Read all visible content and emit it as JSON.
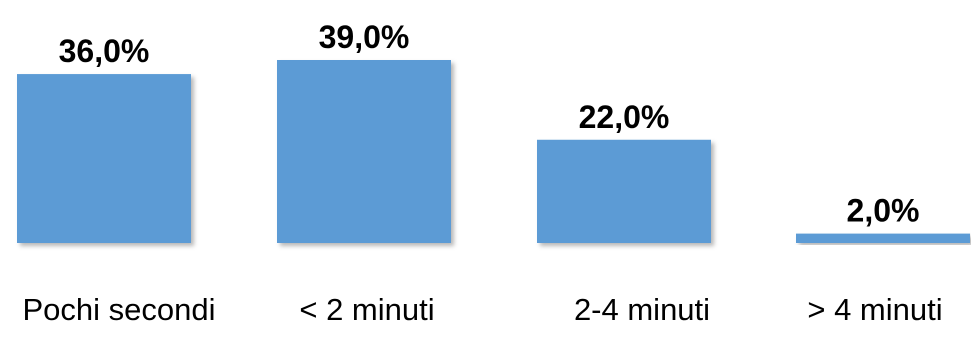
{
  "chart_data": {
    "type": "bar",
    "categories": [
      "Pochi secondi",
      "< 2 minuti",
      "2-4 minuti",
      "> 4 minuti"
    ],
    "values": [
      36.0,
      39.0,
      22.0,
      2.0
    ],
    "data_labels": [
      "36,0%",
      "39,0%",
      "22,0%",
      "2,0%"
    ],
    "title": "",
    "xlabel": "",
    "ylabel": "",
    "ylim": [
      0,
      39
    ],
    "grid": false,
    "legend": "none",
    "colors": {
      "bar": "#5b9bd5",
      "text": "#000000"
    }
  }
}
